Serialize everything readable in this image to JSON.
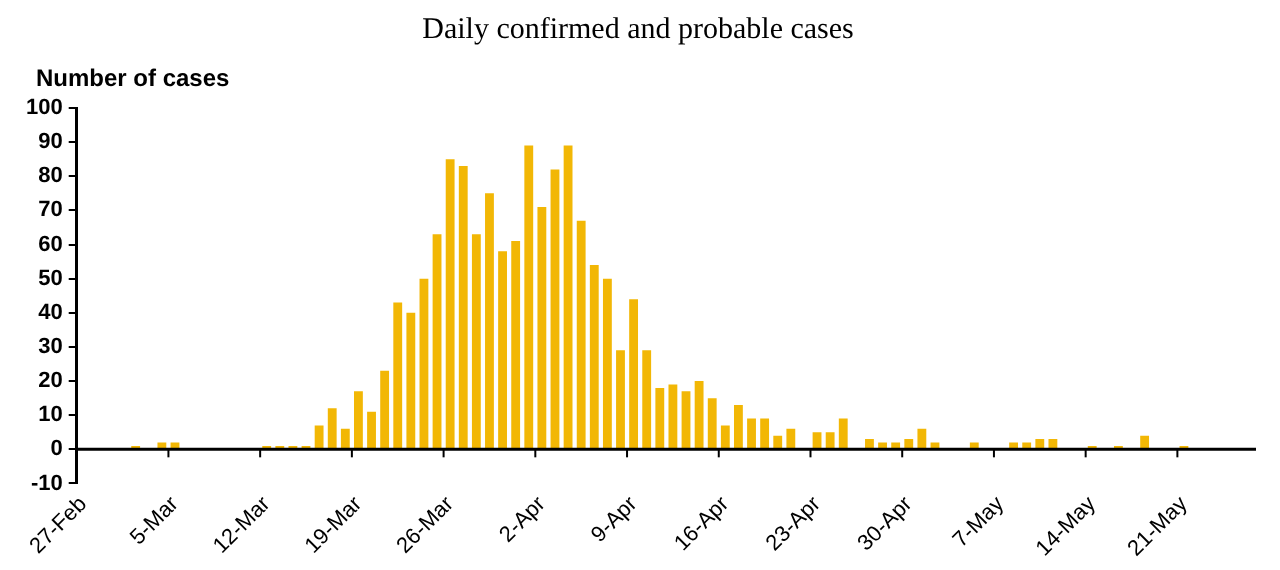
{
  "chart_data": {
    "type": "bar",
    "title": "Daily confirmed and probable cases",
    "ylabel": "Number of cases",
    "categories": [
      "27-Feb",
      null,
      null,
      null,
      null,
      null,
      null,
      "5-Mar",
      null,
      null,
      null,
      null,
      null,
      null,
      "12-Mar",
      null,
      null,
      null,
      null,
      null,
      null,
      "19-Mar",
      null,
      null,
      null,
      null,
      null,
      null,
      "26-Mar",
      null,
      null,
      null,
      null,
      null,
      null,
      "2-Apr",
      null,
      null,
      null,
      null,
      null,
      null,
      "9-Apr",
      null,
      null,
      null,
      null,
      null,
      null,
      "16-Apr",
      null,
      null,
      null,
      null,
      null,
      null,
      "23-Apr",
      null,
      null,
      null,
      null,
      null,
      null,
      "30-Apr",
      null,
      null,
      null,
      null,
      null,
      null,
      "7-May",
      null,
      null,
      null,
      null,
      null,
      null,
      "14-May",
      null,
      null,
      null,
      null,
      null,
      null,
      "21-May",
      null,
      null,
      null,
      null,
      null
    ],
    "values": [
      0,
      0,
      0,
      0,
      1,
      0,
      2,
      2,
      0,
      0,
      0,
      0,
      0,
      0,
      1,
      1,
      1,
      1,
      7,
      12,
      6,
      17,
      11,
      23,
      43,
      40,
      50,
      63,
      85,
      83,
      63,
      75,
      58,
      61,
      89,
      71,
      82,
      89,
      67,
      54,
      50,
      29,
      44,
      29,
      18,
      19,
      17,
      20,
      15,
      7,
      13,
      9,
      9,
      4,
      6,
      0,
      5,
      5,
      9,
      0,
      3,
      2,
      2,
      3,
      6,
      2,
      0,
      0,
      2,
      0,
      0,
      2,
      2,
      3,
      3,
      0,
      0,
      1,
      0,
      1,
      0,
      4,
      0,
      0,
      1,
      0,
      0,
      0,
      0,
      0
    ],
    "color": "#f2b705",
    "ylim": [
      -10,
      100
    ],
    "yticks": [
      -10,
      0,
      10,
      20,
      30,
      40,
      50,
      60,
      70,
      80,
      90,
      100
    ],
    "grid": false,
    "legend": false
  }
}
